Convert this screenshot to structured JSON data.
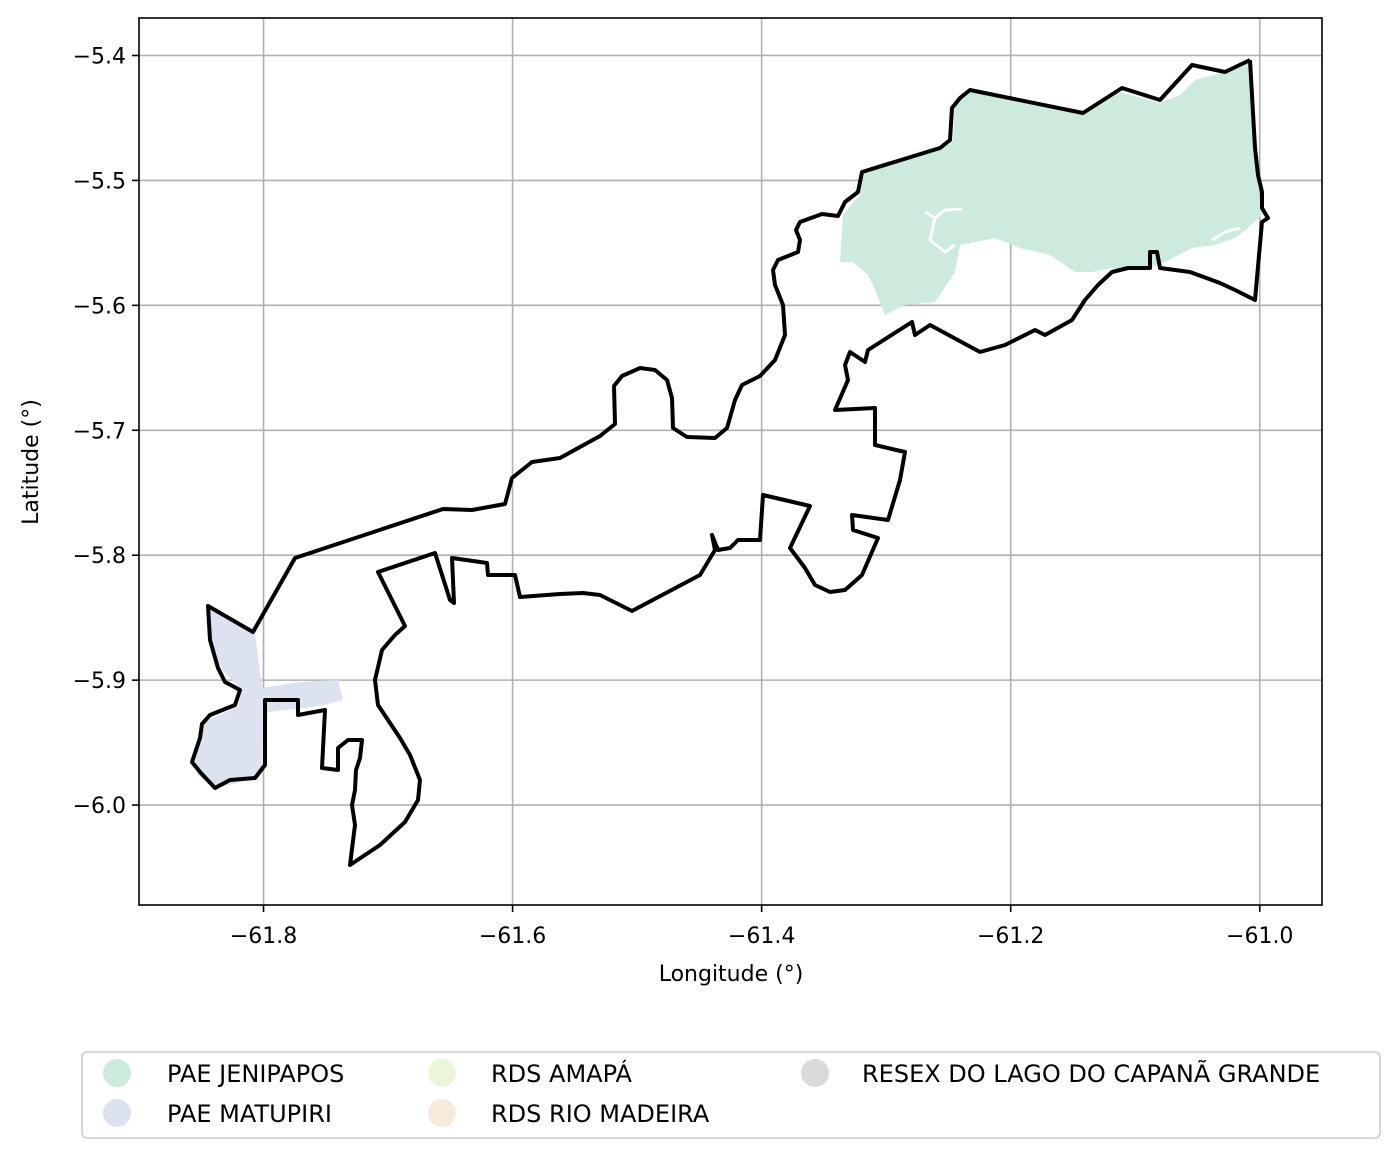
{
  "map": {
    "xlabel": "Longitude (°)",
    "ylabel": "Latitude (°)",
    "xlim": [
      -61.9,
      -60.95
    ],
    "ylim": [
      -6.08,
      -5.37
    ],
    "x_ticks": [
      -61.8,
      -61.6,
      -61.4,
      -61.2,
      -61.0
    ],
    "x_tick_labels": [
      "−61.8",
      "−61.6",
      "−61.4",
      "−61.2",
      "−61.0"
    ],
    "y_ticks": [
      -5.4,
      -5.5,
      -5.6,
      -5.7,
      -5.8,
      -5.9,
      -6.0
    ],
    "y_tick_labels": [
      "−5.4",
      "−5.5",
      "−5.6",
      "−5.7",
      "−5.8",
      "−5.9",
      "−6.0"
    ],
    "grid": true,
    "legend_position": "bottom",
    "legend": [
      {
        "label": "PAE JENIPAPOS",
        "color": "#cdebdd"
      },
      {
        "label": "PAE MATUPIRI",
        "color": "#dde2f1"
      },
      {
        "label": "RDS AMAPÁ",
        "color": "#eaf6da"
      },
      {
        "label": "RDS RIO MADEIRA",
        "color": "#f6eadb"
      },
      {
        "label": "RESEX DO LAGO DO CAPANÃ GRANDE",
        "color": "#d9d9d9"
      }
    ],
    "boundary_color": "#000000"
  }
}
